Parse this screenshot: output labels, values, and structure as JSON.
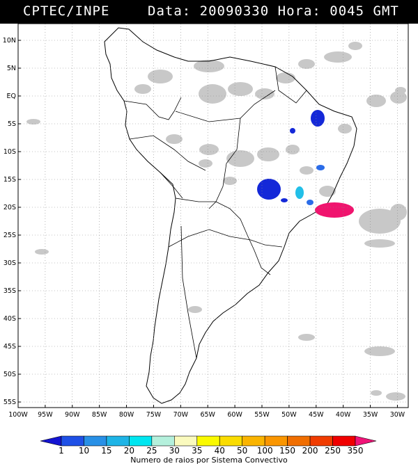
{
  "header": {
    "org": "CPTEC/INPE",
    "date_label": "Data:",
    "date_value": "20090330",
    "time_label": "Hora:",
    "time_value": "0045",
    "tz": "GMT"
  },
  "map": {
    "lon_range": [
      -100,
      -28
    ],
    "lat_range": [
      -56,
      13
    ],
    "lat_ticks": [
      "10N",
      "5N",
      "EQ",
      "5S",
      "10S",
      "15S",
      "20S",
      "25S",
      "30S",
      "35S",
      "40S",
      "45S",
      "50S",
      "55S"
    ],
    "lon_ticks": [
      "100W",
      "95W",
      "90W",
      "85W",
      "80W",
      "75W",
      "70W",
      "65W",
      "60W",
      "55W",
      "50W",
      "45W",
      "40W",
      "35W",
      "30W"
    ],
    "grid": true,
    "colors": {
      "cloud": "#c8c8c8",
      "grid": "#888888"
    }
  },
  "lightning_cells": [
    {
      "lon": -43,
      "lat": -6,
      "class": "1",
      "color": "#1428d8"
    },
    {
      "lon": -45,
      "lat": -8,
      "class": "1",
      "color": "#1428d8"
    },
    {
      "lon": -44,
      "lat": -15,
      "class": "10",
      "color": "#2b6ce8"
    },
    {
      "lon": -55,
      "lat": -18,
      "class": "1",
      "color": "#1428d8"
    },
    {
      "lon": -47,
      "lat": -19,
      "class": "20",
      "color": "#22bfe8"
    },
    {
      "lon": -45,
      "lat": -20,
      "class": "10",
      "color": "#2b6ce8"
    },
    {
      "lon": -51,
      "lat": -20,
      "class": "1",
      "color": "#1428d8"
    },
    {
      "lon": -39,
      "lat": -21,
      "class": "350",
      "color": "#f0146e"
    }
  ],
  "colorbar": {
    "labels": [
      "1",
      "10",
      "15",
      "20",
      "25",
      "30",
      "35",
      "40",
      "50",
      "100",
      "150",
      "200",
      "250",
      "350"
    ],
    "colors": [
      "#1414d2",
      "#1e50e6",
      "#2890e6",
      "#1eb4e6",
      "#00e6f0",
      "#b4f0dc",
      "#fafabe",
      "#fafa00",
      "#fadc00",
      "#fab400",
      "#fa9600",
      "#f06e00",
      "#f03c00",
      "#f00000",
      "#f01478"
    ],
    "title": "Numero de raios por Sistema Convectivo"
  }
}
